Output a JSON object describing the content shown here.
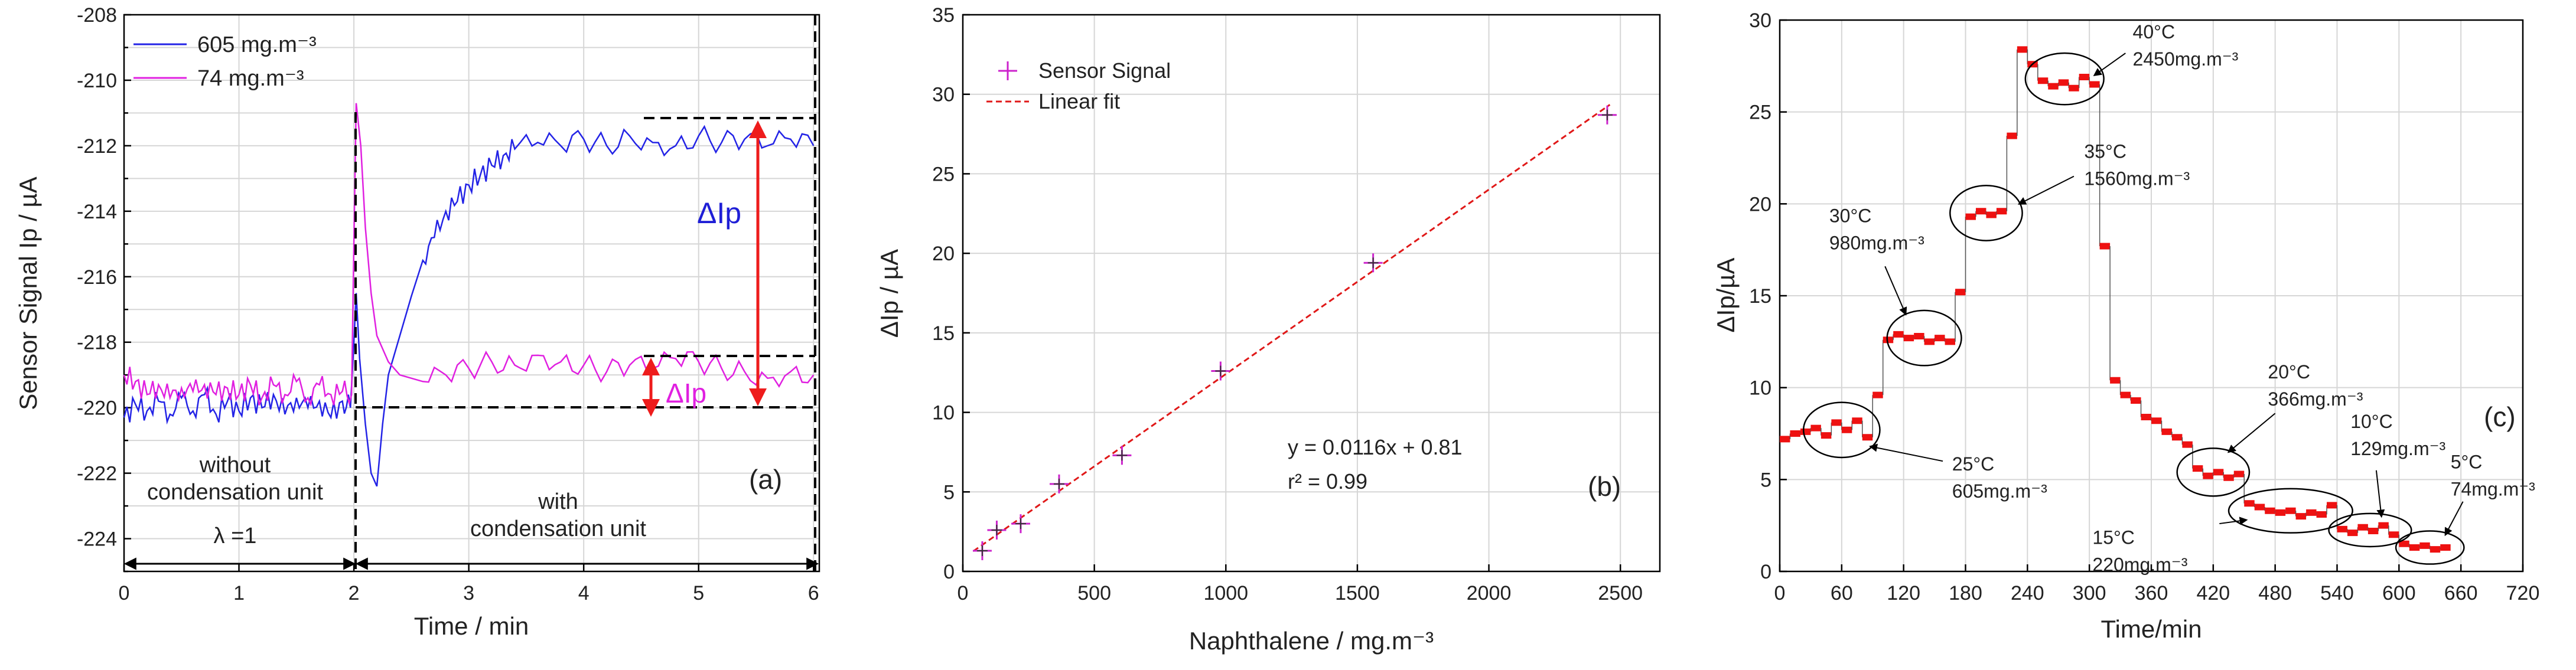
{
  "chart_data": [
    {
      "type": "line",
      "panel_label": "(a)",
      "xlabel": "Time / min",
      "ylabel": "Sensor Signal Ip / µA",
      "xlim": [
        0,
        6.05
      ],
      "ylim": [
        -225,
        -208
      ],
      "xticks": [
        "0",
        "1",
        "2",
        "3",
        "4",
        "5",
        "6"
      ],
      "yticks": [
        "-224",
        "-222",
        "-220",
        "-218",
        "-216",
        "-214",
        "-212",
        "-210",
        "-208"
      ],
      "legend": [
        "605 mg.m⁻³",
        "74 mg.m⁻³"
      ],
      "series": [
        {
          "name": "605 mg.m⁻³",
          "color": "#2323e6",
          "points": [
            [
              0,
              -220.3
            ],
            [
              0.1,
              -219.9
            ],
            [
              0.2,
              -220.1
            ],
            [
              0.3,
              -219.8
            ],
            [
              0.4,
              -220.2
            ],
            [
              0.5,
              -219.7
            ],
            [
              0.6,
              -220.1
            ],
            [
              0.7,
              -219.6
            ],
            [
              0.8,
              -220.2
            ],
            [
              0.9,
              -219.8
            ],
            [
              1.0,
              -220.1
            ],
            [
              1.1,
              -219.7
            ],
            [
              1.2,
              -220.0
            ],
            [
              1.3,
              -219.6
            ],
            [
              1.4,
              -220.2
            ],
            [
              1.5,
              -219.7
            ],
            [
              1.6,
              -220.0
            ],
            [
              1.7,
              -219.8
            ],
            [
              1.8,
              -220.3
            ],
            [
              1.9,
              -219.8
            ],
            [
              1.97,
              -220.0
            ],
            [
              2.0,
              -218.0
            ],
            [
              2.02,
              -216.5
            ],
            [
              2.05,
              -218.5
            ],
            [
              2.1,
              -220.5
            ],
            [
              2.15,
              -222.0
            ],
            [
              2.2,
              -222.4
            ],
            [
              2.25,
              -220.5
            ],
            [
              2.3,
              -219.0
            ],
            [
              2.4,
              -217.8
            ],
            [
              2.5,
              -216.6
            ],
            [
              2.6,
              -215.5
            ],
            [
              2.7,
              -214.8
            ],
            [
              2.8,
              -214.0
            ],
            [
              2.9,
              -213.7
            ],
            [
              3.0,
              -213.2
            ],
            [
              3.1,
              -212.9
            ],
            [
              3.2,
              -212.6
            ],
            [
              3.3,
              -212.3
            ],
            [
              3.4,
              -212.1
            ],
            [
              3.6,
              -211.9
            ],
            [
              3.8,
              -212.0
            ],
            [
              4.0,
              -211.8
            ],
            [
              4.2,
              -212.0
            ],
            [
              4.4,
              -211.7
            ],
            [
              4.6,
              -211.9
            ],
            [
              4.8,
              -212.0
            ],
            [
              5.0,
              -211.7
            ],
            [
              5.2,
              -211.9
            ],
            [
              5.4,
              -211.8
            ],
            [
              5.6,
              -212.0
            ],
            [
              5.8,
              -211.8
            ],
            [
              6.0,
              -212.0
            ]
          ]
        },
        {
          "name": "74 mg.m⁻³",
          "color": "#e020e0",
          "points": [
            [
              0,
              -219.0
            ],
            [
              0.1,
              -219.2
            ],
            [
              0.2,
              -219.6
            ],
            [
              0.3,
              -219.3
            ],
            [
              0.4,
              -219.7
            ],
            [
              0.5,
              -219.4
            ],
            [
              0.6,
              -219.5
            ],
            [
              0.7,
              -219.3
            ],
            [
              0.8,
              -219.6
            ],
            [
              0.9,
              -219.4
            ],
            [
              1.0,
              -219.6
            ],
            [
              1.1,
              -219.3
            ],
            [
              1.2,
              -219.7
            ],
            [
              1.3,
              -219.3
            ],
            [
              1.4,
              -219.6
            ],
            [
              1.5,
              -219.2
            ],
            [
              1.6,
              -219.7
            ],
            [
              1.7,
              -219.3
            ],
            [
              1.8,
              -219.6
            ],
            [
              1.9,
              -219.5
            ],
            [
              1.98,
              -219.6
            ],
            [
              2.0,
              -215.0
            ],
            [
              2.02,
              -210.7
            ],
            [
              2.06,
              -212.0
            ],
            [
              2.1,
              -214.5
            ],
            [
              2.15,
              -216.5
            ],
            [
              2.2,
              -217.8
            ],
            [
              2.3,
              -218.6
            ],
            [
              2.4,
              -219.0
            ],
            [
              2.6,
              -219.2
            ],
            [
              2.8,
              -219.0
            ],
            [
              3.0,
              -218.8
            ],
            [
              3.2,
              -218.6
            ],
            [
              3.4,
              -218.7
            ],
            [
              3.6,
              -218.4
            ],
            [
              3.8,
              -218.6
            ],
            [
              4.0,
              -218.7
            ],
            [
              4.2,
              -218.9
            ],
            [
              4.4,
              -218.7
            ],
            [
              4.6,
              -218.8
            ],
            [
              4.8,
              -218.5
            ],
            [
              5.0,
              -218.6
            ],
            [
              5.2,
              -218.8
            ],
            [
              5.4,
              -218.9
            ],
            [
              5.6,
              -219.1
            ],
            [
              5.8,
              -218.9
            ],
            [
              6.0,
              -219.0
            ]
          ]
        }
      ],
      "annotations": {
        "delta_large": "ΔIp",
        "delta_small": "ΔIp",
        "region_left_line1": "without",
        "region_left_line2": "condensation unit",
        "region_left_line3": "λ =1",
        "region_right_line1": "with",
        "region_right_line2": "condensation unit"
      }
    },
    {
      "type": "scatter",
      "panel_label": "(b)",
      "xlabel": "Naphthalene / mg.m⁻³",
      "ylabel": "ΔIp / µA",
      "xlim": [
        0,
        2650
      ],
      "ylim": [
        0,
        35
      ],
      "xticks": [
        "0",
        "500",
        "1000",
        "1500",
        "2000",
        "2500"
      ],
      "yticks": [
        "0",
        "5",
        "10",
        "15",
        "20",
        "25",
        "30",
        "35"
      ],
      "legend": [
        "Sensor Signal",
        "Linear fit"
      ],
      "x": [
        74,
        129,
        220,
        366,
        605,
        980,
        1560,
        2450
      ],
      "y": [
        1.3,
        2.6,
        3.0,
        5.5,
        7.3,
        12.6,
        19.4,
        28.7
      ],
      "fit": {
        "slope": 0.0116,
        "intercept": 0.81,
        "equation": "y = 0.0116x + 0.81",
        "r2": "r² = 0.99"
      }
    },
    {
      "type": "line",
      "panel_label": "(c)",
      "xlabel": "Time/min",
      "ylabel": "ΔIp/µA",
      "xlim": [
        0,
        720
      ],
      "ylim": [
        0,
        30
      ],
      "xticks": [
        "0",
        "60",
        "120",
        "180",
        "240",
        "300",
        "360",
        "420",
        "480",
        "540",
        "600",
        "660",
        "720"
      ],
      "yticks": [
        "0",
        "5",
        "10",
        "15",
        "20",
        "25",
        "30"
      ],
      "steps": [
        {
          "from": 0,
          "to": 10,
          "y": 7.2
        },
        {
          "from": 10,
          "to": 20,
          "y": 7.5
        },
        {
          "from": 20,
          "to": 30,
          "y": 7.6
        },
        {
          "from": 30,
          "to": 40,
          "y": 7.8
        },
        {
          "from": 40,
          "to": 50,
          "y": 7.4
        },
        {
          "from": 50,
          "to": 60,
          "y": 8.1
        },
        {
          "from": 60,
          "to": 70,
          "y": 7.7
        },
        {
          "from": 70,
          "to": 80,
          "y": 8.2
        },
        {
          "from": 80,
          "to": 90,
          "y": 7.3
        },
        {
          "from": 90,
          "to": 100,
          "y": 9.6
        },
        {
          "from": 100,
          "to": 110,
          "y": 12.6
        },
        {
          "from": 110,
          "to": 120,
          "y": 12.9
        },
        {
          "from": 120,
          "to": 130,
          "y": 12.7
        },
        {
          "from": 130,
          "to": 140,
          "y": 12.8
        },
        {
          "from": 140,
          "to": 150,
          "y": 12.5
        },
        {
          "from": 150,
          "to": 160,
          "y": 12.7
        },
        {
          "from": 160,
          "to": 170,
          "y": 12.5
        },
        {
          "from": 170,
          "to": 180,
          "y": 15.2
        },
        {
          "from": 180,
          "to": 190,
          "y": 19.3
        },
        {
          "from": 190,
          "to": 200,
          "y": 19.6
        },
        {
          "from": 200,
          "to": 210,
          "y": 19.4
        },
        {
          "from": 210,
          "to": 220,
          "y": 19.6
        },
        {
          "from": 220,
          "to": 230,
          "y": 23.7
        },
        {
          "from": 230,
          "to": 240,
          "y": 28.4
        },
        {
          "from": 240,
          "to": 250,
          "y": 27.6
        },
        {
          "from": 250,
          "to": 260,
          "y": 26.7
        },
        {
          "from": 260,
          "to": 270,
          "y": 26.4
        },
        {
          "from": 270,
          "to": 280,
          "y": 26.6
        },
        {
          "from": 280,
          "to": 290,
          "y": 26.3
        },
        {
          "from": 290,
          "to": 300,
          "y": 26.9
        },
        {
          "from": 300,
          "to": 310,
          "y": 26.5
        },
        {
          "from": 310,
          "to": 320,
          "y": 17.7
        },
        {
          "from": 320,
          "to": 330,
          "y": 10.4
        },
        {
          "from": 330,
          "to": 340,
          "y": 9.6
        },
        {
          "from": 340,
          "to": 350,
          "y": 9.3
        },
        {
          "from": 350,
          "to": 360,
          "y": 8.4
        },
        {
          "from": 360,
          "to": 370,
          "y": 8.2
        },
        {
          "from": 370,
          "to": 380,
          "y": 7.6
        },
        {
          "from": 380,
          "to": 390,
          "y": 7.3
        },
        {
          "from": 390,
          "to": 400,
          "y": 6.9
        },
        {
          "from": 400,
          "to": 410,
          "y": 5.6
        },
        {
          "from": 410,
          "to": 420,
          "y": 5.2
        },
        {
          "from": 420,
          "to": 430,
          "y": 5.4
        },
        {
          "from": 430,
          "to": 440,
          "y": 5.1
        },
        {
          "from": 440,
          "to": 450,
          "y": 5.3
        },
        {
          "from": 450,
          "to": 460,
          "y": 3.7
        },
        {
          "from": 460,
          "to": 470,
          "y": 3.5
        },
        {
          "from": 470,
          "to": 480,
          "y": 3.3
        },
        {
          "from": 480,
          "to": 490,
          "y": 3.2
        },
        {
          "from": 490,
          "to": 500,
          "y": 3.3
        },
        {
          "from": 500,
          "to": 510,
          "y": 3.0
        },
        {
          "from": 510,
          "to": 520,
          "y": 3.2
        },
        {
          "from": 520,
          "to": 530,
          "y": 3.1
        },
        {
          "from": 530,
          "to": 540,
          "y": 3.6
        },
        {
          "from": 540,
          "to": 550,
          "y": 2.3
        },
        {
          "from": 550,
          "to": 560,
          "y": 2.1
        },
        {
          "from": 560,
          "to": 570,
          "y": 2.4
        },
        {
          "from": 570,
          "to": 580,
          "y": 2.2
        },
        {
          "from": 580,
          "to": 590,
          "y": 2.5
        },
        {
          "from": 590,
          "to": 600,
          "y": 2.0
        },
        {
          "from": 600,
          "to": 610,
          "y": 1.5
        },
        {
          "from": 610,
          "to": 620,
          "y": 1.3
        },
        {
          "from": 620,
          "to": 630,
          "y": 1.4
        },
        {
          "from": 630,
          "to": 640,
          "y": 1.2
        },
        {
          "from": 640,
          "to": 650,
          "y": 1.3
        }
      ],
      "callouts": [
        {
          "line1": "25°C",
          "line2": "605mg.m⁻³"
        },
        {
          "line1": "30°C",
          "line2": "980mg.m⁻³"
        },
        {
          "line1": "35°C",
          "line2": "1560mg.m⁻³"
        },
        {
          "line1": "40°C",
          "line2": "2450mg.m⁻³"
        },
        {
          "line1": "20°C",
          "line2": "366mg.m⁻³"
        },
        {
          "line1": "15°C",
          "line2": "220mg.m⁻³"
        },
        {
          "line1": "10°C",
          "line2": "129mg.m⁻³"
        },
        {
          "line1": "5°C",
          "line2": "74mg.m⁻³"
        }
      ]
    }
  ]
}
